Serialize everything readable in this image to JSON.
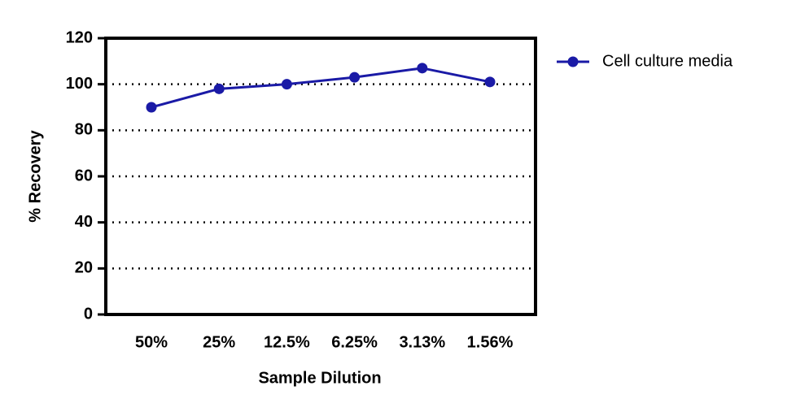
{
  "chart_data": {
    "type": "line",
    "x_label": "Sample Dilution",
    "y_label": "% Recovery",
    "categories": [
      "50%",
      "25%",
      "12.5%",
      "6.25%",
      "3.13%",
      "1.56%"
    ],
    "series": [
      {
        "name": "Cell culture media",
        "color": "#1a1aa6",
        "values": [
          90,
          98,
          100,
          103,
          107,
          101
        ]
      }
    ],
    "ylim": [
      0,
      120
    ],
    "yticks": [
      0,
      20,
      40,
      60,
      80,
      100,
      120
    ],
    "grid": true,
    "legend": "right"
  }
}
